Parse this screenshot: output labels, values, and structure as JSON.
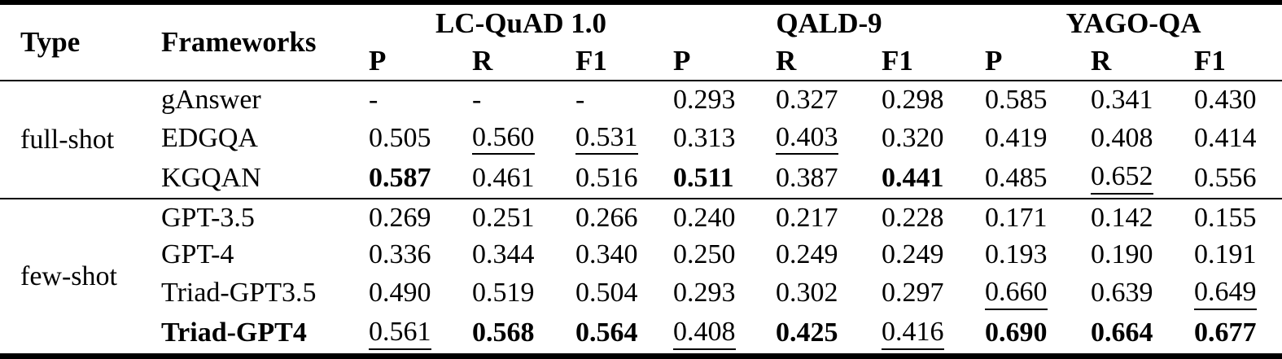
{
  "table": {
    "headers": {
      "type": "Type",
      "frameworks": "Frameworks",
      "groups": [
        {
          "label": "LC-QuAD 1.0",
          "metrics": [
            "P",
            "R",
            "F1"
          ]
        },
        {
          "label": "QALD-9",
          "metrics": [
            "P",
            "R",
            "F1"
          ]
        },
        {
          "label": "YAGO-QA",
          "metrics": [
            "P",
            "R",
            "F1"
          ]
        }
      ]
    },
    "sections": [
      {
        "type_label": "full-shot",
        "rows": [
          {
            "framework": "gAnswer",
            "style": "normal",
            "values": [
              {
                "v": "-",
                "s": "n"
              },
              {
                "v": "-",
                "s": "n"
              },
              {
                "v": "-",
                "s": "n"
              },
              {
                "v": "0.293",
                "s": "n"
              },
              {
                "v": "0.327",
                "s": "n"
              },
              {
                "v": "0.298",
                "s": "n"
              },
              {
                "v": "0.585",
                "s": "n"
              },
              {
                "v": "0.341",
                "s": "n"
              },
              {
                "v": "0.430",
                "s": "n"
              }
            ]
          },
          {
            "framework": "EDGQA",
            "style": "normal",
            "values": [
              {
                "v": "0.505",
                "s": "n"
              },
              {
                "v": "0.560",
                "s": "u"
              },
              {
                "v": "0.531",
                "s": "u"
              },
              {
                "v": "0.313",
                "s": "n"
              },
              {
                "v": "0.403",
                "s": "u"
              },
              {
                "v": "0.320",
                "s": "n"
              },
              {
                "v": "0.419",
                "s": "n"
              },
              {
                "v": "0.408",
                "s": "n"
              },
              {
                "v": "0.414",
                "s": "n"
              }
            ]
          },
          {
            "framework": "KGQAN",
            "style": "normal",
            "values": [
              {
                "v": "0.587",
                "s": "b"
              },
              {
                "v": "0.461",
                "s": "n"
              },
              {
                "v": "0.516",
                "s": "n"
              },
              {
                "v": "0.511",
                "s": "b"
              },
              {
                "v": "0.387",
                "s": "n"
              },
              {
                "v": "0.441",
                "s": "b"
              },
              {
                "v": "0.485",
                "s": "n"
              },
              {
                "v": "0.652",
                "s": "u"
              },
              {
                "v": "0.556",
                "s": "n"
              }
            ]
          }
        ]
      },
      {
        "type_label": "few-shot",
        "rows": [
          {
            "framework": "GPT-3.5",
            "style": "normal",
            "values": [
              {
                "v": "0.269",
                "s": "n"
              },
              {
                "v": "0.251",
                "s": "n"
              },
              {
                "v": "0.266",
                "s": "n"
              },
              {
                "v": "0.240",
                "s": "n"
              },
              {
                "v": "0.217",
                "s": "n"
              },
              {
                "v": "0.228",
                "s": "n"
              },
              {
                "v": "0.171",
                "s": "n"
              },
              {
                "v": "0.142",
                "s": "n"
              },
              {
                "v": "0.155",
                "s": "n"
              }
            ]
          },
          {
            "framework": "GPT-4",
            "style": "normal",
            "values": [
              {
                "v": "0.336",
                "s": "n"
              },
              {
                "v": "0.344",
                "s": "n"
              },
              {
                "v": "0.340",
                "s": "n"
              },
              {
                "v": "0.250",
                "s": "n"
              },
              {
                "v": "0.249",
                "s": "n"
              },
              {
                "v": "0.249",
                "s": "n"
              },
              {
                "v": "0.193",
                "s": "n"
              },
              {
                "v": "0.190",
                "s": "n"
              },
              {
                "v": "0.191",
                "s": "n"
              }
            ]
          },
          {
            "framework": "Triad-GPT3.5",
            "style": "normal",
            "values": [
              {
                "v": "0.490",
                "s": "n"
              },
              {
                "v": "0.519",
                "s": "n"
              },
              {
                "v": "0.504",
                "s": "n"
              },
              {
                "v": "0.293",
                "s": "n"
              },
              {
                "v": "0.302",
                "s": "n"
              },
              {
                "v": "0.297",
                "s": "n"
              },
              {
                "v": "0.660",
                "s": "u"
              },
              {
                "v": "0.639",
                "s": "n"
              },
              {
                "v": "0.649",
                "s": "u"
              }
            ]
          },
          {
            "framework": "Triad-GPT4",
            "style": "bold",
            "values": [
              {
                "v": "0.561",
                "s": "u"
              },
              {
                "v": "0.568",
                "s": "b"
              },
              {
                "v": "0.564",
                "s": "b"
              },
              {
                "v": "0.408",
                "s": "u"
              },
              {
                "v": "0.425",
                "s": "b"
              },
              {
                "v": "0.416",
                "s": "u"
              },
              {
                "v": "0.690",
                "s": "b"
              },
              {
                "v": "0.664",
                "s": "b"
              },
              {
                "v": "0.677",
                "s": "b"
              }
            ]
          }
        ]
      }
    ],
    "style_legend": {
      "b": "bold (best result)",
      "u": "underlined (second-best result)",
      "n": "normal"
    },
    "colors": {
      "text": "#000000",
      "background": "#ffffff",
      "rule": "#000000"
    }
  },
  "chart_data": {
    "type": "table",
    "title": "",
    "categories": [
      "gAnswer",
      "EDGQA",
      "KGQAN",
      "GPT-3.5",
      "GPT-4",
      "Triad-GPT3.5",
      "Triad-GPT4"
    ],
    "row_types": [
      "full-shot",
      "full-shot",
      "full-shot",
      "few-shot",
      "few-shot",
      "few-shot",
      "few-shot"
    ],
    "series": [
      {
        "name": "LC-QuAD 1.0 P",
        "values": [
          null,
          0.505,
          0.587,
          0.269,
          0.336,
          0.49,
          0.561
        ]
      },
      {
        "name": "LC-QuAD 1.0 R",
        "values": [
          null,
          0.56,
          0.461,
          0.251,
          0.344,
          0.519,
          0.568
        ]
      },
      {
        "name": "LC-QuAD 1.0 F1",
        "values": [
          null,
          0.531,
          0.516,
          0.266,
          0.34,
          0.504,
          0.564
        ]
      },
      {
        "name": "QALD-9 P",
        "values": [
          0.293,
          0.313,
          0.511,
          0.24,
          0.25,
          0.293,
          0.408
        ]
      },
      {
        "name": "QALD-9 R",
        "values": [
          0.327,
          0.403,
          0.387,
          0.217,
          0.249,
          0.302,
          0.425
        ]
      },
      {
        "name": "QALD-9 F1",
        "values": [
          0.298,
          0.32,
          0.441,
          0.228,
          0.249,
          0.297,
          0.416
        ]
      },
      {
        "name": "YAGO-QA P",
        "values": [
          0.585,
          0.419,
          0.485,
          0.171,
          0.193,
          0.66,
          0.69
        ]
      },
      {
        "name": "YAGO-QA R",
        "values": [
          0.341,
          0.408,
          0.652,
          0.142,
          0.19,
          0.639,
          0.664
        ]
      },
      {
        "name": "YAGO-QA F1",
        "values": [
          0.43,
          0.414,
          0.556,
          0.155,
          0.191,
          0.649,
          0.677
        ]
      }
    ]
  }
}
